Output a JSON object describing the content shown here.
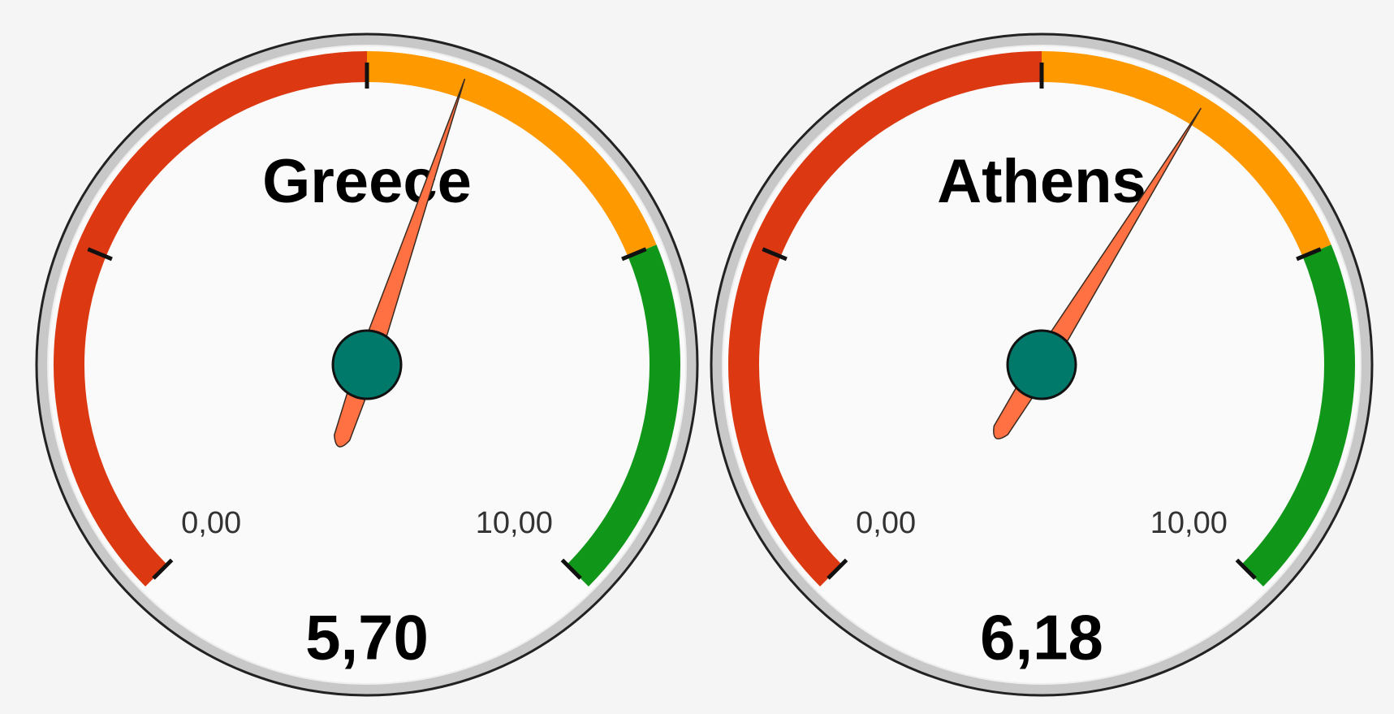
{
  "chart_data": [
    {
      "type": "gauge",
      "title": "Greece",
      "values": [
        5.7
      ],
      "value_labels": [
        "5,70"
      ],
      "range": [
        0,
        10
      ],
      "ticks": [
        {
          "value": 0,
          "label": "0,00"
        },
        {
          "value": 10,
          "label": "10,00"
        }
      ],
      "minor_ticks": [
        2.5,
        5,
        7.5
      ],
      "bands": [
        {
          "from": 0,
          "to": 5,
          "color": "#dc3912"
        },
        {
          "from": 5,
          "to": 7.5,
          "color": "#ff9900"
        },
        {
          "from": 7.5,
          "to": 10,
          "color": "#109618"
        }
      ],
      "needle_color": "#ff7043",
      "hub_color": "#00796b"
    },
    {
      "type": "gauge",
      "title": "Athens",
      "values": [
        6.18
      ],
      "value_labels": [
        "6,18"
      ],
      "range": [
        0,
        10
      ],
      "ticks": [
        {
          "value": 0,
          "label": "0,00"
        },
        {
          "value": 10,
          "label": "10,00"
        }
      ],
      "minor_ticks": [
        2.5,
        5,
        7.5
      ],
      "bands": [
        {
          "from": 0,
          "to": 5,
          "color": "#dc3912"
        },
        {
          "from": 5,
          "to": 7.5,
          "color": "#ff9900"
        },
        {
          "from": 7.5,
          "to": 10,
          "color": "#109618"
        }
      ],
      "needle_color": "#ff7043",
      "hub_color": "#00796b"
    }
  ]
}
